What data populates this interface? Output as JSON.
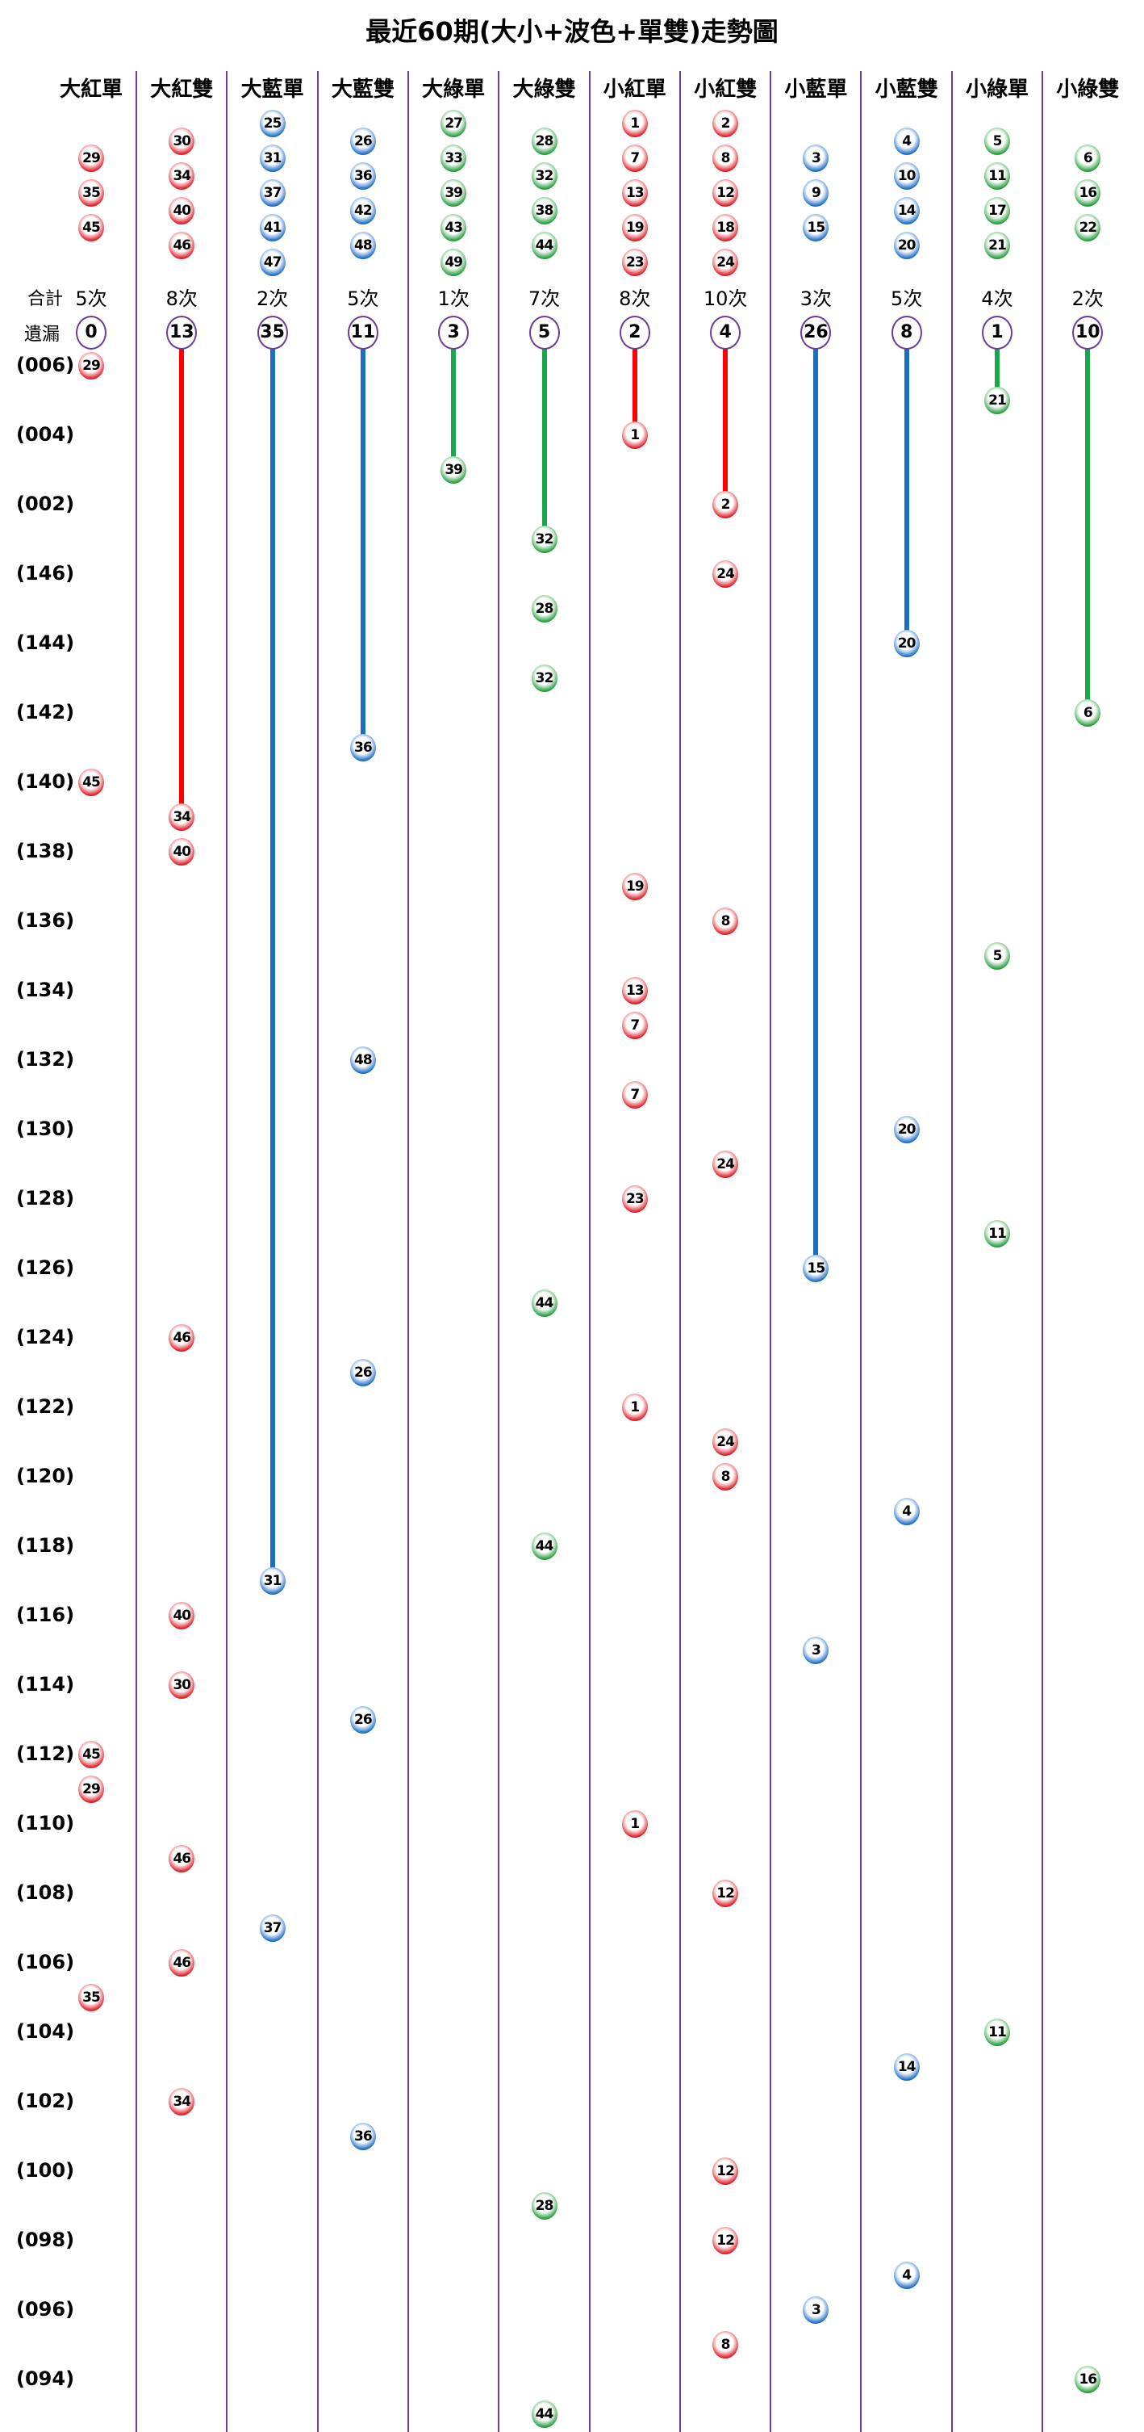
{
  "title": "最近60期(大小+波色+單雙)走勢圖",
  "labels": {
    "total": "合計",
    "missing": "遺漏"
  },
  "colors": {
    "red": "#e0202a",
    "blue": "#1f6fc8",
    "green": "#28a040",
    "divider": "#6a3d9a",
    "line_red": "#ff0000",
    "line_blue": "#1a6fbf",
    "line_green": "#1aa64a"
  },
  "chart_data": {
    "type": "table",
    "title": "最近60期(大小+波色+單雙)走勢圖",
    "columns": [
      {
        "name": "大紅單",
        "color": "red",
        "numbers": [
          "29",
          "35",
          "45"
        ],
        "count": "5次",
        "missing": "0"
      },
      {
        "name": "大紅雙",
        "color": "red",
        "numbers": [
          "30",
          "34",
          "40",
          "46"
        ],
        "count": "8次",
        "missing": "13"
      },
      {
        "name": "大藍單",
        "color": "blue",
        "numbers": [
          "25",
          "31",
          "37",
          "41",
          "47"
        ],
        "count": "2次",
        "missing": "35"
      },
      {
        "name": "大藍雙",
        "color": "blue",
        "numbers": [
          "26",
          "36",
          "42",
          "48"
        ],
        "count": "5次",
        "missing": "11"
      },
      {
        "name": "大綠單",
        "color": "green",
        "numbers": [
          "27",
          "33",
          "39",
          "43",
          "49"
        ],
        "count": "1次",
        "missing": "3"
      },
      {
        "name": "大綠雙",
        "color": "green",
        "numbers": [
          "28",
          "32",
          "38",
          "44"
        ],
        "count": "7次",
        "missing": "5"
      },
      {
        "name": "小紅單",
        "color": "red",
        "numbers": [
          "1",
          "7",
          "13",
          "19",
          "23"
        ],
        "count": "8次",
        "missing": "2"
      },
      {
        "name": "小紅雙",
        "color": "red",
        "numbers": [
          "2",
          "8",
          "12",
          "18",
          "24"
        ],
        "count": "10次",
        "missing": "4"
      },
      {
        "name": "小藍單",
        "color": "blue",
        "numbers": [
          "3",
          "9",
          "15"
        ],
        "count": "3次",
        "missing": "26"
      },
      {
        "name": "小藍雙",
        "color": "blue",
        "numbers": [
          "4",
          "10",
          "14",
          "20"
        ],
        "count": "5次",
        "missing": "8"
      },
      {
        "name": "小綠單",
        "color": "green",
        "numbers": [
          "5",
          "11",
          "17",
          "21"
        ],
        "count": "4次",
        "missing": "1"
      },
      {
        "name": "小綠雙",
        "color": "green",
        "numbers": [
          "6",
          "16",
          "22"
        ],
        "count": "2次",
        "missing": "10"
      }
    ],
    "period_labels": [
      "(006)",
      "(004)",
      "(002)",
      "(146)",
      "(144)",
      "(142)",
      "(140)",
      "(138)",
      "(136)",
      "(134)",
      "(132)",
      "(130)",
      "(128)",
      "(126)",
      "(124)",
      "(122)",
      "(120)",
      "(118)",
      "(116)",
      "(114)",
      "(112)",
      "(110)",
      "(108)",
      "(106)",
      "(104)",
      "(102)",
      "(100)",
      "(098)",
      "(096)",
      "(094)"
    ],
    "draws": [
      [
        0,
        "29"
      ],
      [
        10,
        "21"
      ],
      [
        6,
        "1"
      ],
      [
        4,
        "39"
      ],
      [
        7,
        "2"
      ],
      [
        5,
        "32"
      ],
      [
        7,
        "24"
      ],
      [
        5,
        "28"
      ],
      [
        9,
        "20"
      ],
      [
        5,
        "32"
      ],
      [
        11,
        "6"
      ],
      [
        3,
        "36"
      ],
      [
        0,
        "45"
      ],
      [
        1,
        "34"
      ],
      [
        1,
        "40"
      ],
      [
        6,
        "19"
      ],
      [
        7,
        "8"
      ],
      [
        10,
        "5"
      ],
      [
        6,
        "13"
      ],
      [
        6,
        "7"
      ],
      [
        3,
        "48"
      ],
      [
        6,
        "7"
      ],
      [
        9,
        "20"
      ],
      [
        7,
        "24"
      ],
      [
        6,
        "23"
      ],
      [
        10,
        "11"
      ],
      [
        8,
        "15"
      ],
      [
        5,
        "44"
      ],
      [
        1,
        "46"
      ],
      [
        3,
        "26"
      ],
      [
        6,
        "1"
      ],
      [
        7,
        "24"
      ],
      [
        7,
        "8"
      ],
      [
        9,
        "4"
      ],
      [
        5,
        "44"
      ],
      [
        2,
        "31"
      ],
      [
        1,
        "40"
      ],
      [
        8,
        "3"
      ],
      [
        1,
        "30"
      ],
      [
        3,
        "26"
      ],
      [
        0,
        "45"
      ],
      [
        0,
        "29"
      ],
      [
        6,
        "1"
      ],
      [
        1,
        "46"
      ],
      [
        7,
        "12"
      ],
      [
        2,
        "37"
      ],
      [
        1,
        "46"
      ],
      [
        0,
        "35"
      ],
      [
        10,
        "11"
      ],
      [
        9,
        "14"
      ],
      [
        1,
        "34"
      ],
      [
        3,
        "36"
      ],
      [
        7,
        "12"
      ],
      [
        5,
        "28"
      ],
      [
        7,
        "12"
      ],
      [
        9,
        "4"
      ],
      [
        8,
        "3"
      ],
      [
        7,
        "8"
      ],
      [
        11,
        "16"
      ],
      [
        5,
        "44"
      ]
    ]
  }
}
